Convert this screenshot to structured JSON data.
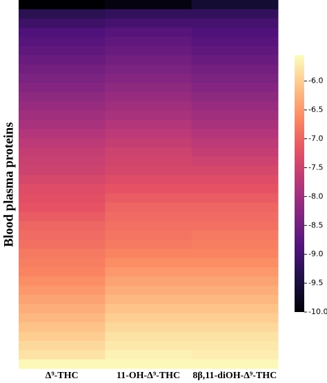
{
  "chart_data": {
    "type": "heatmap",
    "ylabel": "Blood plasma proteins",
    "categories": [
      "Δ⁹-THC",
      "11-OH-Δ⁹-THC",
      "8β,11-diOH-Δ⁹-THC"
    ],
    "colormap": "magma",
    "clim": [
      -10.0,
      -5.55
    ],
    "cticks": [
      {
        "value": -6.0,
        "label": "-6.0"
      },
      {
        "value": -6.5,
        "label": "-6.5"
      },
      {
        "value": -7.0,
        "label": "-7.0"
      },
      {
        "value": -7.5,
        "label": "-7.5"
      },
      {
        "value": -8.0,
        "label": "-8.0"
      },
      {
        "value": -8.5,
        "label": "-8.5"
      },
      {
        "value": -9.0,
        "label": "-9.0"
      },
      {
        "value": -9.5,
        "label": "-9.5"
      },
      {
        "value": -10.0,
        "label": "-10.0"
      }
    ],
    "values": [
      [
        -10.0,
        -9.9,
        -9.6
      ],
      [
        -9.3,
        -9.2,
        -9.2
      ],
      [
        -9.1,
        -9.0,
        -9.0
      ],
      [
        -8.9,
        -8.8,
        -8.9
      ],
      [
        -8.8,
        -8.7,
        -8.8
      ],
      [
        -8.7,
        -8.6,
        -8.7
      ],
      [
        -8.6,
        -8.5,
        -8.6
      ],
      [
        -8.5,
        -8.4,
        -8.5
      ],
      [
        -8.4,
        -8.3,
        -8.4
      ],
      [
        -8.3,
        -8.2,
        -8.3
      ],
      [
        -8.2,
        -8.1,
        -8.2
      ],
      [
        -8.1,
        -8.0,
        -8.1
      ],
      [
        -8.0,
        -7.9,
        -8.0
      ],
      [
        -7.9,
        -7.8,
        -7.9
      ],
      [
        -7.8,
        -7.7,
        -7.8
      ],
      [
        -7.7,
        -7.6,
        -7.7
      ],
      [
        -7.6,
        -7.5,
        -7.6
      ],
      [
        -7.55,
        -7.45,
        -7.5
      ],
      [
        -7.5,
        -7.4,
        -7.4
      ],
      [
        -7.4,
        -7.3,
        -7.3
      ],
      [
        -7.3,
        -7.2,
        -7.2
      ],
      [
        -7.25,
        -7.1,
        -7.1
      ],
      [
        -7.2,
        -7.0,
        -7.0
      ],
      [
        -7.1,
        -6.95,
        -6.95
      ],
      [
        -7.0,
        -6.9,
        -6.9
      ],
      [
        -6.95,
        -6.85,
        -6.8
      ],
      [
        -6.9,
        -6.8,
        -6.75
      ],
      [
        -6.8,
        -6.7,
        -6.7
      ],
      [
        -6.75,
        -6.6,
        -6.6
      ],
      [
        -6.7,
        -6.5,
        -6.5
      ],
      [
        -6.6,
        -6.4,
        -6.4
      ],
      [
        -6.5,
        -6.3,
        -6.3
      ],
      [
        -6.4,
        -6.2,
        -6.2
      ],
      [
        -6.3,
        -6.1,
        -6.1
      ],
      [
        -6.2,
        -6.0,
        -6.0
      ],
      [
        -6.1,
        -5.9,
        -5.9
      ],
      [
        -6.0,
        -5.8,
        -5.8
      ],
      [
        -5.9,
        -5.75,
        -5.75
      ],
      [
        -5.8,
        -5.65,
        -5.7
      ],
      [
        -5.6,
        -5.6,
        -5.6
      ]
    ]
  }
}
